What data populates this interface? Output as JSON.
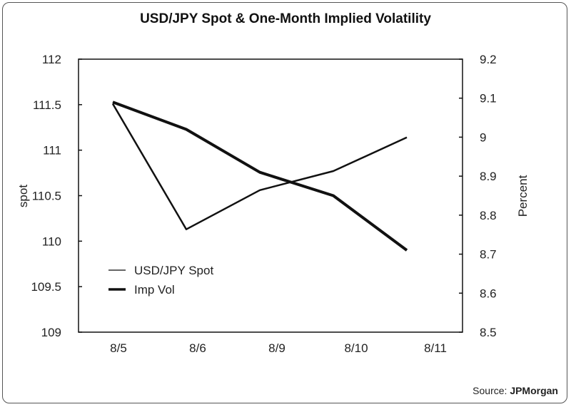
{
  "chart_data": {
    "type": "line",
    "title": "USD/JPY Spot & One-Month Implied Volatility",
    "categories": [
      "8/5",
      "8/6",
      "8/9",
      "8/10",
      "8/11"
    ],
    "ylabel": "spot",
    "ylabel_right": "Percent",
    "ylim": [
      109,
      112
    ],
    "ylim_right": [
      8.5,
      9.2
    ],
    "yticks": [
      "109",
      "109.5",
      "110",
      "110.5",
      "111",
      "111.5",
      "112"
    ],
    "yticks_right": [
      "8.5",
      "8.6",
      "8.7",
      "8.8",
      "8.9",
      "9",
      "9.1",
      "9.2"
    ],
    "grid": false,
    "legend_position": "bottom-left",
    "series": [
      {
        "name": "USD/JPY Spot",
        "axis": "left",
        "values": [
          111.51,
          110.13,
          110.56,
          110.77,
          111.14
        ]
      },
      {
        "name": "Imp Vol",
        "axis": "right",
        "values": [
          9.09,
          9.02,
          8.91,
          8.85,
          8.71
        ]
      }
    ],
    "source_label": "Source:",
    "source_name": "JPMorgan"
  }
}
